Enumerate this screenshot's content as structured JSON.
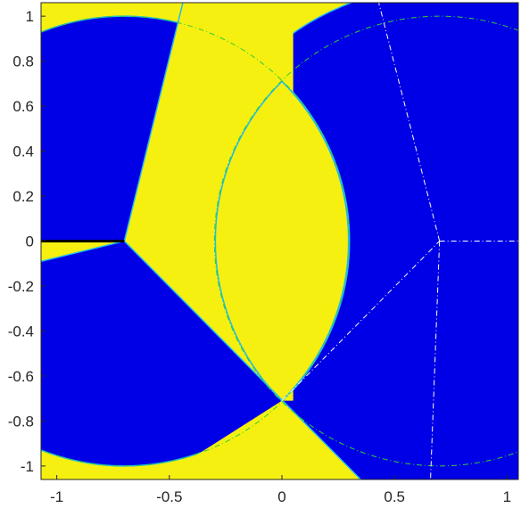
{
  "colors": {
    "yellow": "#f5f010",
    "blue": "#0000e6",
    "boundary": "#22bbee",
    "dashed_green": "#33cc33",
    "dashed_white": "#ffffff",
    "axis_text": "#262626",
    "line": "#000000"
  },
  "chart_data": {
    "type": "heatmap",
    "title": "",
    "xlabel": "",
    "ylabel": "",
    "xlim": [
      -1.07,
      1.05
    ],
    "ylim": [
      -1.06,
      1.06
    ],
    "xticks": [
      -1,
      -0.5,
      0,
      0.5,
      1
    ],
    "xtick_labels": [
      "-1",
      "-0.5",
      "0",
      "0.5",
      "1"
    ],
    "yticks": [
      1,
      0.8,
      0.6,
      0.4,
      0.2,
      0,
      -0.2,
      -0.4,
      -0.6,
      -0.8,
      -1
    ],
    "ytick_labels": [
      "1",
      "0.8",
      "0.6",
      "0.4",
      "0.2",
      "0",
      "-0.2",
      "-0.4",
      "-0.6",
      "-0.8",
      "-1"
    ],
    "grid": false,
    "legend": "none",
    "region_values": [
      "yellow",
      "blue"
    ],
    "features": {
      "left_center": [
        -0.7,
        0
      ],
      "right_center": [
        0.7,
        0
      ],
      "intersection_points": [
        [
          0,
          0.71
        ],
        [
          0,
          -0.71
        ]
      ],
      "left_circle_radius": 1.0,
      "right_circle_radius": 1.0,
      "right_outer_radius": 1.13,
      "ray_endpoints_left": [
        [
          -0.44,
          1.06
        ],
        [
          0.35,
          -1.06
        ],
        [
          -1.07,
          -0.09
        ]
      ],
      "ray_endpoints_right": [
        [
          0.43,
          1.06
        ],
        [
          0.66,
          -1.06
        ],
        [
          1.05,
          0
        ]
      ],
      "black_segment": [
        [
          -1.07,
          0
        ],
        [
          -0.7,
          0
        ]
      ]
    }
  }
}
